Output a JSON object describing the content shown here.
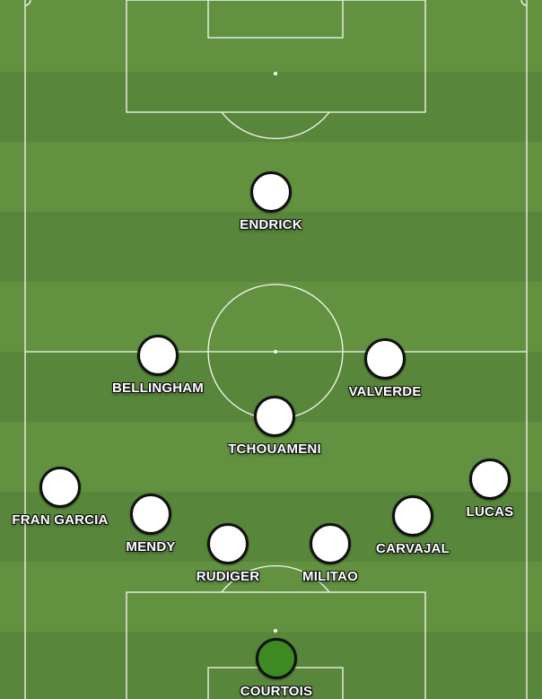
{
  "pitch": {
    "grass_light": "#62923f",
    "grass_dark": "#58863a",
    "line_color": "#ffffff",
    "keeper_color": "#3e8a22",
    "player_color": "#ffffff"
  },
  "players": [
    {
      "name": "ENDRICK",
      "role": "outfield"
    },
    {
      "name": "BELLINGHAM",
      "role": "outfield"
    },
    {
      "name": "VALVERDE",
      "role": "outfield"
    },
    {
      "name": "TCHOUAMENI",
      "role": "outfield"
    },
    {
      "name": "FRAN GARCIA",
      "role": "outfield"
    },
    {
      "name": "LUCAS",
      "role": "outfield"
    },
    {
      "name": "MENDY",
      "role": "outfield"
    },
    {
      "name": "CARVAJAL",
      "role": "outfield"
    },
    {
      "name": "RUDIGER",
      "role": "outfield"
    },
    {
      "name": "MILITAO",
      "role": "outfield"
    },
    {
      "name": "COURTOIS",
      "role": "goalkeeper"
    }
  ]
}
